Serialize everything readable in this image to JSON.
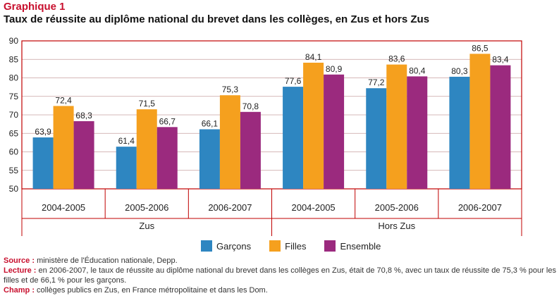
{
  "title": {
    "kicker": "Graphique 1",
    "main": "Taux de réussite au diplôme national du brevet dans les collèges, en Zus et hors Zus"
  },
  "colors": {
    "accent": "#c8102e",
    "frame": "#c00000",
    "garcons": "#2e86c1",
    "filles": "#f5a01e",
    "ensemble": "#9b2a7e",
    "grid": "#c8a0a0"
  },
  "chart_data": {
    "type": "bar",
    "categories": [
      "2004-2005",
      "2005-2006",
      "2006-2007",
      "2004-2005",
      "2005-2006",
      "2006-2007"
    ],
    "groups": [
      {
        "label": "Zus",
        "categories": [
          "2004-2005",
          "2005-2006",
          "2006-2007"
        ]
      },
      {
        "label": "Hors Zus",
        "categories": [
          "2004-2005",
          "2005-2006",
          "2006-2007"
        ]
      }
    ],
    "series": [
      {
        "name": "Garçons",
        "values": [
          63.9,
          61.4,
          66.1,
          77.6,
          77.2,
          80.3
        ],
        "labels": [
          "63,9",
          "61,4",
          "66,1",
          "77,6",
          "77,2",
          "80,3"
        ]
      },
      {
        "name": "Filles",
        "values": [
          72.4,
          71.5,
          75.3,
          84.1,
          83.6,
          86.5
        ],
        "labels": [
          "72,4",
          "71,5",
          "75,3",
          "84,1",
          "83,6",
          "86,5"
        ]
      },
      {
        "name": "Ensemble",
        "values": [
          68.3,
          66.7,
          70.8,
          80.9,
          80.4,
          83.4
        ],
        "labels": [
          "68,3",
          "66,7",
          "70,8",
          "80,9",
          "80,4",
          "83,4"
        ]
      }
    ],
    "ylim": [
      50,
      90
    ],
    "yticks": [
      "50",
      "55",
      "60",
      "65",
      "70",
      "75",
      "80",
      "85",
      "90"
    ],
    "grid": true,
    "legend_position": "bottom"
  },
  "notes": {
    "source_label": "Source :",
    "source_text": " ministère de l'Éducation nationale, Depp.",
    "lecture_label": "Lecture :",
    "lecture_text": " en 2006-2007, le taux de réussite au diplôme national du brevet dans les collèges en Zus, était de 70,8 %, avec un taux de réussite de 75,3 % pour les filles et de 66,1 % pour les garçons.",
    "champ_label": "Champ :",
    "champ_text": " collèges publics en Zus, en France métropolitaine et dans les Dom."
  }
}
